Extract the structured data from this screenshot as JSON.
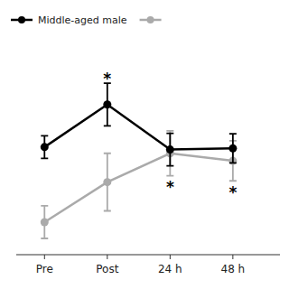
{
  "chart_data": {
    "type": "line",
    "categories": [
      "Pre",
      "Post",
      "24 h",
      "48 h"
    ],
    "series": [
      {
        "name": "Middle-aged male",
        "color": "#000000",
        "marker": "circle",
        "values": [
          4.8,
          6.5,
          4.7,
          4.75
        ],
        "errors": [
          0.45,
          0.85,
          0.65,
          0.58
        ]
      },
      {
        "color": "#aaaaaa",
        "marker": "circle",
        "values": [
          1.8,
          3.4,
          4.55,
          4.25
        ],
        "errors": [
          0.65,
          1.15,
          0.9,
          0.8
        ]
      }
    ],
    "annotations": [
      {
        "text": "*",
        "x": "Post",
        "y": 7.53
      },
      {
        "text": "*",
        "x": "24 h",
        "y": 3.2
      },
      {
        "text": "*",
        "x": "48 h",
        "y": 3.0
      }
    ],
    "xlim": [
      -0.45,
      3.75
    ],
    "ylim": [
      0.5,
      8.8
    ],
    "grid": false,
    "tick_labels": "x"
  }
}
